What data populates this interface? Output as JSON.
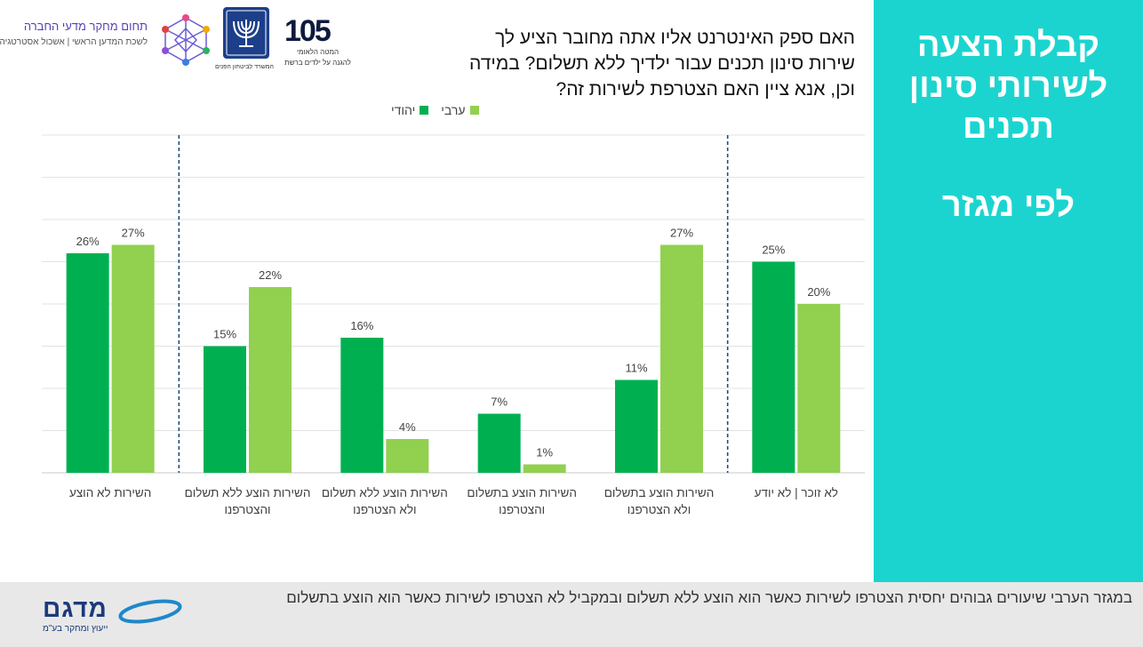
{
  "header": {
    "org_line1": "תחום מחקר מדעי החברה",
    "org_line2": "לשכת המדען הראשי | אשכול אסטרטגיה",
    "ministry_caption": "המשרד לביטחון הפנים",
    "logo105_number": "105",
    "logo105_line1": "המטה הלאומי",
    "logo105_line2": "להגנה על ילדים ברשת"
  },
  "question": "האם ספק האינטרנט אליו אתה מחובר הציע לך שירות סינון תכנים עבור ילדיך ללא תשלום? במידה וכן, אנא ציין האם הצטרפת לשירות זה?",
  "panel": {
    "title_line1": "קבלת הצעה",
    "title_line2": "לשירותי סינון",
    "title_line3": "תכנים",
    "subtitle": "לפי מגזר"
  },
  "footer": {
    "note": "במגזר הערבי שיעורים גבוהים יחסית הצטרפו לשירות כאשר הוא הוצע ללא תשלום ובמקביל לא הצטרפו לשירות כאשר הוא הוצע בתשלום",
    "logo_text": "מדגם",
    "logo_tagline": "ייעוץ ומחקר בע\"מ"
  },
  "colors": {
    "jewish": "#00b050",
    "arab": "#92d050",
    "panel": "#1cd4cf",
    "divider": "#1f4e79"
  },
  "chart_data": {
    "type": "bar",
    "categories": [
      [
        "השירות לא הוצע"
      ],
      [
        "השירות הוצע ללא תשלום",
        "והצטרפנו"
      ],
      [
        "השירות הוצע ללא תשלום",
        "ולא הצטרפנו"
      ],
      [
        "השירות הוצע בתשלום",
        "והצטרפנו"
      ],
      [
        "השירות הוצע בתשלום",
        "ולא הצטרפנו"
      ],
      [
        "לא זוכר | לא יודע"
      ]
    ],
    "series": [
      {
        "name": "יהודי",
        "values": [
          26,
          15,
          16,
          7,
          11,
          25
        ],
        "labels": [
          "26%",
          "15%",
          "16%",
          "7%",
          "11%",
          "25%"
        ]
      },
      {
        "name": "ערבי",
        "values": [
          27,
          22,
          4,
          1,
          27,
          20
        ],
        "labels": [
          "27%",
          "22%",
          "4%",
          "1%",
          "27%",
          "20%"
        ]
      }
    ],
    "ylim": [
      0,
      40
    ],
    "grid": true,
    "legend": "top-center"
  }
}
